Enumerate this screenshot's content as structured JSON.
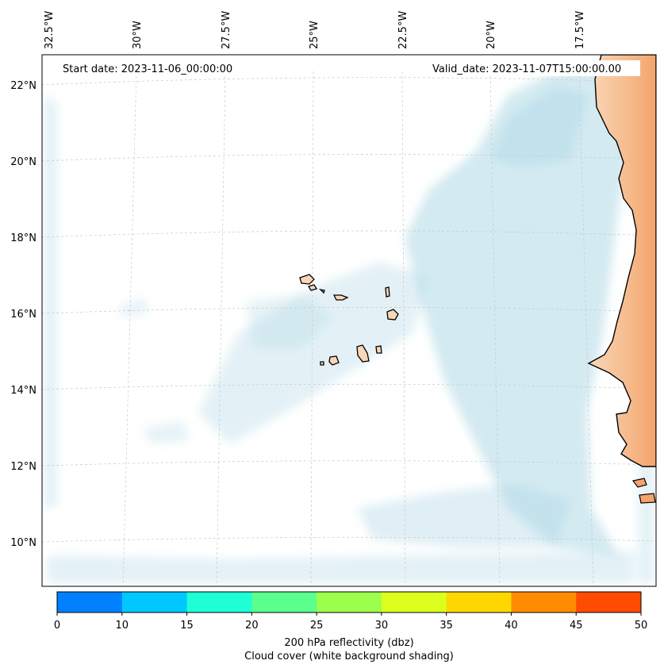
{
  "map": {
    "start_date": "Start date: 2023-11-06_00:00:00",
    "valid_date": "Valid_date: 2023-11-07T15:00:00.00",
    "lon_labels": [
      "32.5°W",
      "30°W",
      "27.5°W",
      "25°W",
      "22.5°W",
      "20°W",
      "17.5°W"
    ],
    "lat_labels": [
      "22°N",
      "20°N",
      "18°N",
      "16°N",
      "14°N",
      "12°N",
      "10°N"
    ],
    "colors": {
      "cloud": "#aed8e6",
      "land": "#f4a46c",
      "land_light": "#f9d6b8",
      "coast": "#000000",
      "grid": "#c8c8c8"
    }
  },
  "colorbar": {
    "ticks": [
      "0",
      "10",
      "15",
      "20",
      "25",
      "30",
      "35",
      "40",
      "45",
      "50"
    ],
    "colors": [
      "#0080ff",
      "#00c8ff",
      "#1effd6",
      "#5bff8c",
      "#9bff4b",
      "#dcff1e",
      "#ffd700",
      "#ff8c00",
      "#ff4c00"
    ],
    "label_line1": "200 hPa reflectivity (dbz)",
    "label_line2": "Cloud cover (white background shading)"
  }
}
